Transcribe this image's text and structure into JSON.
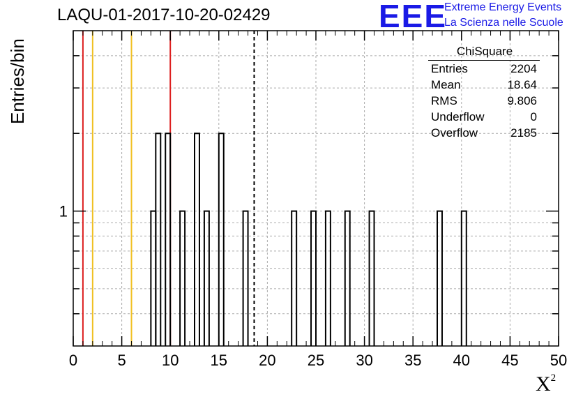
{
  "header": {
    "title": "LAQU-01-2017-10-20-02429",
    "logo_text": "EEE",
    "logo_line1": "Extreme Energy Events",
    "logo_line2": "La Scienza nelle Scuole"
  },
  "stats": {
    "name": "ChiSquare",
    "rows": [
      {
        "label": "Entries",
        "value": "2204"
      },
      {
        "label": "Mean",
        "value": "18.64"
      },
      {
        "label": "RMS",
        "value": "9.806"
      },
      {
        "label": "Underflow",
        "value": "0"
      },
      {
        "label": "Overflow",
        "value": "2185"
      }
    ]
  },
  "chart_data": {
    "type": "bar",
    "title": "LAQU-01-2017-10-20-02429",
    "xlabel": "X",
    "xlabel_superscript": "2",
    "ylabel": "Entries/bin",
    "xlim": [
      0,
      50
    ],
    "ylim": [
      0.3,
      5
    ],
    "yscale": "log",
    "grid": true,
    "bin_width": 0.5,
    "x_ticks": [
      "0",
      "5",
      "10",
      "15",
      "20",
      "25",
      "30",
      "35",
      "40",
      "45",
      "50"
    ],
    "y_tick_labels": [
      {
        "value": 1,
        "label": "1"
      }
    ],
    "bins": [
      {
        "low": 8.0,
        "count": 1
      },
      {
        "low": 8.5,
        "count": 2
      },
      {
        "low": 9.5,
        "count": 2
      },
      {
        "low": 11.0,
        "count": 1
      },
      {
        "low": 12.5,
        "count": 2
      },
      {
        "low": 13.5,
        "count": 1
      },
      {
        "low": 15.0,
        "count": 2
      },
      {
        "low": 17.5,
        "count": 1
      },
      {
        "low": 22.5,
        "count": 1
      },
      {
        "low": 24.5,
        "count": 1
      },
      {
        "low": 26.0,
        "count": 1
      },
      {
        "low": 28.0,
        "count": 1
      },
      {
        "low": 30.5,
        "count": 1
      },
      {
        "low": 37.5,
        "count": 1
      },
      {
        "low": 40.0,
        "count": 1
      }
    ],
    "reference_lines": [
      {
        "x": 1,
        "color": "#dd2020",
        "style": "solid"
      },
      {
        "x": 2,
        "color": "#f0c020",
        "style": "solid"
      },
      {
        "x": 6,
        "color": "#f0c020",
        "style": "solid"
      },
      {
        "x": 10,
        "color": "#dd2020",
        "style": "solid"
      },
      {
        "x": 18.64,
        "color": "#000000",
        "style": "dashed"
      }
    ]
  }
}
